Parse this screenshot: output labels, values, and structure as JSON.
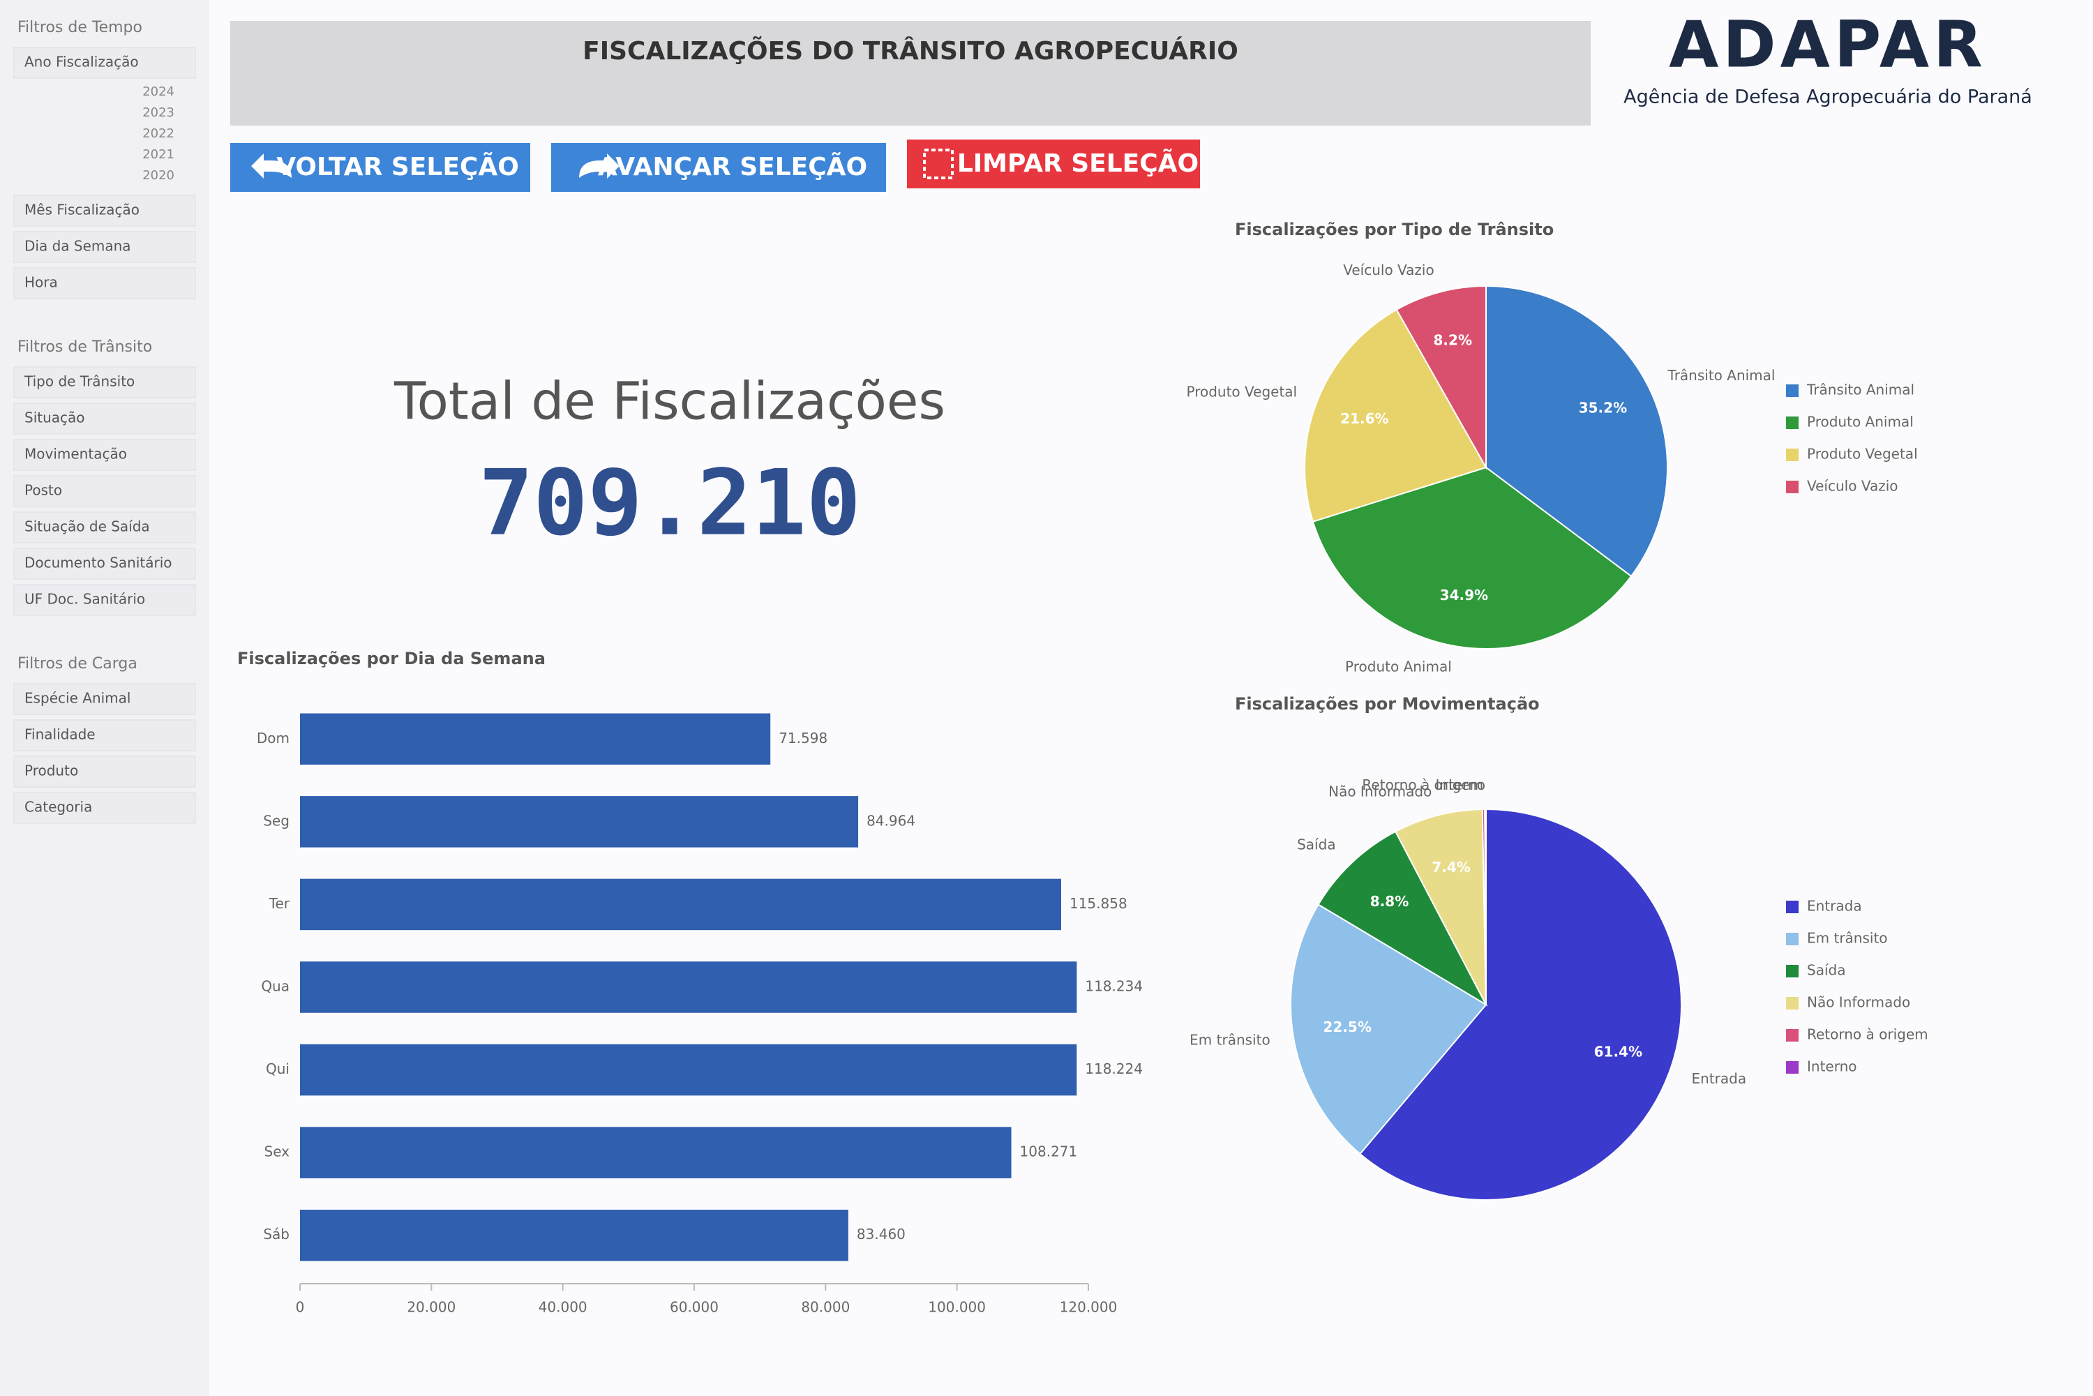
{
  "header": {
    "title": "FISCALIZAÇÕES DO TRÂNSITO AGROPECUÁRIO",
    "logo": "ADAPAR",
    "logo_subtitle": "Agência de Defesa Agropecuária do Paraná"
  },
  "buttons": [
    "VOLTAR SELEÇÃO",
    "AVANÇAR SELEÇÃO",
    "LIMPAR SELEÇÃO"
  ],
  "kpi": {
    "label": "Total de Fiscalizações",
    "value": "709.210"
  },
  "sidebar": {
    "sections": [
      {
        "title": "Filtros de Tempo",
        "filters": [
          "Ano Fiscalização",
          "Mês Fiscalização",
          "Dia da Semana",
          "Hora"
        ],
        "years": [
          "2024",
          "2023",
          "2022",
          "2021",
          "2020"
        ]
      },
      {
        "title": "Filtros de Trânsito",
        "filters": [
          "Tipo de Trânsito",
          "Situação",
          "Movimentação",
          "Posto",
          "Situação de Saída",
          "Documento Sanitário",
          "UF Doc. Sanitário"
        ]
      },
      {
        "title": "Filtros de Carga",
        "filters": [
          "Espécie Animal",
          "Finalidade",
          "Produto",
          "Categoria"
        ]
      }
    ]
  },
  "chart_data": [
    {
      "type": "bar",
      "horizontal": true,
      "title": "Fiscalizações por Dia da Semana",
      "color": "#2f5fae",
      "categories": [
        "Dom",
        "Seg",
        "Ter",
        "Qua",
        "Qui",
        "Sex",
        "Sáb"
      ],
      "values": [
        71598,
        84964,
        115858,
        118234,
        118224,
        108271,
        83460
      ],
      "value_labels": [
        "71.598",
        "84.964",
        "115.858",
        "118.234",
        "118.224",
        "108.271",
        "83.460"
      ],
      "xlim": [
        0,
        120000
      ],
      "xticks": [
        0,
        {
          "value": 20000,
          "label": "20.000"
        },
        {
          "value": 40000,
          "label": "40.000"
        },
        {
          "value": 60000,
          "label": "60.000"
        },
        {
          "value": 80000,
          "label": "80.000"
        },
        {
          "value": 100000,
          "label": "100.000"
        },
        {
          "value": 120000,
          "label": "120.000"
        }
      ]
    },
    {
      "type": "pie",
      "title": "Fiscalizações por Tipo de Trânsito",
      "categories": [
        "Trânsito Animal",
        "Produto Animal",
        "Produto Vegetal",
        "Veículo Vazio"
      ],
      "values": [
        35.2,
        34.9,
        21.6,
        8.2
      ],
      "value_labels": [
        "35.2%",
        "34.9%",
        "21.6%",
        "8.2%"
      ],
      "colors": [
        "#3a7dc9",
        "#2e9a3a",
        "#e8d36a",
        "#d9506e"
      ]
    },
    {
      "type": "pie",
      "title": "Fiscalizações por Movimentação",
      "categories": [
        "Entrada",
        "Em trânsito",
        "Saída",
        "Não Informado",
        "Retorno à origem",
        "Interno"
      ],
      "values": [
        61.4,
        22.5,
        8.8,
        7.4,
        0.2,
        0.1
      ],
      "value_labels": [
        "61.4%",
        "22.5%",
        "8.8%",
        "7.4%",
        null,
        null
      ],
      "colors": [
        "#3a3acc",
        "#8ec0ea",
        "#1f8a3a",
        "#e8dc8a",
        "#d9507a",
        "#9b3ac9"
      ]
    }
  ]
}
